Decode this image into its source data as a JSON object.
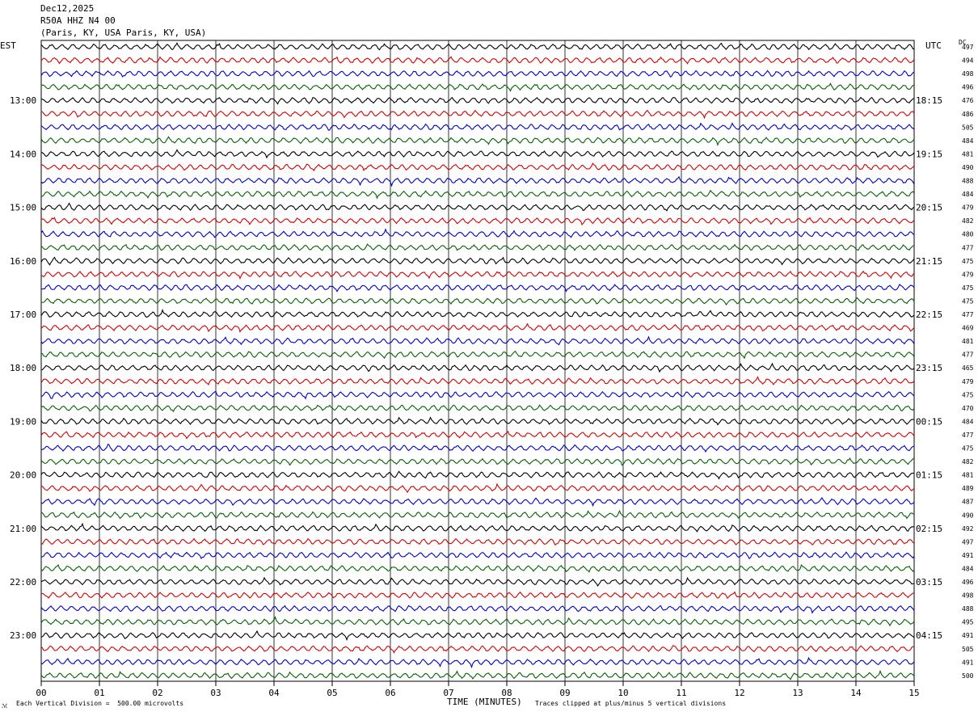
{
  "header": {
    "date": "Dec12,2025",
    "station": "R50A HHZ N4 00",
    "location": "(Paris, KY, USA Paris, KY, USA)"
  },
  "labels": {
    "left_zone": "EST",
    "right_zone": "UTC",
    "dc": "DC",
    "corner_mark": "ℳ"
  },
  "footer": {
    "division_note": "Each Vertical Division =  500.00 microvolts",
    "axis_title": "TIME (MINUTES)",
    "clip_note": "Traces clipped at plus/minus 5 vertical divisions"
  },
  "chart_data": {
    "type": "line",
    "title": "",
    "xlabel": "TIME (MINUTES)",
    "xlim": [
      0,
      15
    ],
    "x_ticks": [
      "00",
      "01",
      "02",
      "03",
      "04",
      "05",
      "06",
      "07",
      "08",
      "09",
      "10",
      "11",
      "12",
      "13",
      "14",
      "15"
    ],
    "grid": "vertical lines at each minute",
    "trace_colors": [
      "#000000",
      "#d40000",
      "#0000c8",
      "#006400"
    ],
    "trace_count": 48,
    "est_hour_labels": [
      "13:00",
      "14:00",
      "15:00",
      "16:00",
      "17:00",
      "18:00",
      "19:00",
      "20:00",
      "21:00",
      "22:00",
      "23:00"
    ],
    "utc_hour_labels": [
      "18:15",
      "19:15",
      "20:15",
      "21:15",
      "22:15",
      "23:15",
      "00:15",
      "01:15",
      "02:15",
      "03:15",
      "04:15"
    ],
    "hour_label_first_trace": 4,
    "traces_per_hour": 4,
    "dc_values": [
      497,
      494,
      498,
      496,
      476,
      486,
      505,
      484,
      481,
      490,
      488,
      484,
      479,
      482,
      480,
      477,
      475,
      479,
      475,
      475,
      477,
      469,
      481,
      477,
      465,
      479,
      475,
      470,
      484,
      477,
      475,
      482,
      481,
      489,
      487,
      490,
      492,
      497,
      491,
      484,
      496,
      498,
      488,
      495,
      491,
      505,
      491,
      500
    ]
  }
}
